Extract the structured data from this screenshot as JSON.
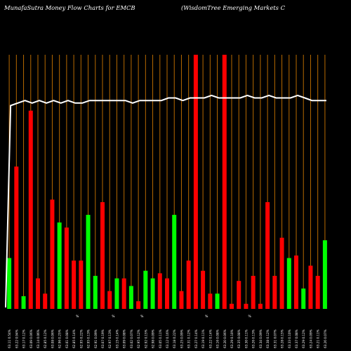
{
  "chart_data": {
    "type": "bar",
    "title": "MunafaSutra  Money Flow  Charts for EMCB",
    "subtitle": "(WisdomTree   Emerging Markets C",
    "colors": {
      "inflow": "#ff0000",
      "outflow": "#00ff00",
      "line": "#ffffff",
      "grid": "#b86a00"
    },
    "categories": [
      "63.11 0.54%",
      "63.22 0.94%",
      "63.17 0.12%",
      "63.09 0.06%",
      "63.14 0.06%",
      "62.85 0.12%",
      "63.08 0.06%",
      "62.96 0.25%",
      "63.01 0.08%",
      "62.85 0.14%",
      "62.95 0.22%",
      "62.95 0.13%",
      "62.91 0.09%",
      "63.07 0.19%",
      "62.97 0.13%",
      "63.15 0.14%",
      "63.09 0.08%",
      "63.02 0.07%",
      "62.95 0.12%",
      "62.92 0.15%",
      "62.98 0.09%",
      "63.05 0.11%",
      "63.12 0.16%",
      "63.18 0.22%",
      "63.25 0.09%",
      "63.31 0.12%",
      "63.27 0.14%",
      "63.19 0.11%",
      "63.22 0.14%",
      "63.16 0.08%",
      "63.20 0.06%",
      "63.29 0.10%",
      "63.35 0.08%",
      "63.30 0.11%",
      "63.26 0.13%",
      "63.34 0.09%",
      "63.38 0.12%",
      "63.31 0.07%",
      "63.28 0.15%",
      "63.33 0.10%",
      "63.37 0.08%",
      "63.29 0.12%",
      "63.24 0.09%",
      "63.21 0.11%",
      "63.26 0.07%"
    ],
    "flow": [
      "out",
      "in",
      "out",
      "in",
      "in",
      "in",
      "in",
      "out",
      "in",
      "in",
      "in",
      "out",
      "out",
      "in",
      "in",
      "out",
      "in",
      "out",
      "in",
      "out",
      "out",
      "in",
      "in",
      "out",
      "in",
      "in",
      "in",
      "in",
      "in",
      "out",
      "in",
      "in",
      "in",
      "in",
      "in",
      "in",
      "in",
      "in",
      "in",
      "out",
      "in",
      "out",
      "in",
      "in",
      "out"
    ],
    "values": [
      20,
      56,
      5,
      78,
      12,
      6,
      43,
      34,
      32,
      19,
      19,
      37,
      13,
      42,
      7,
      12,
      12,
      9,
      3,
      15,
      12,
      14,
      12,
      37,
      7,
      19,
      100,
      15,
      6,
      6,
      100,
      2,
      11,
      2,
      13,
      2,
      42,
      13,
      28,
      20,
      21,
      8,
      17,
      13,
      27
    ],
    "line_values": [
      80,
      81,
      82,
      81,
      82,
      81,
      82,
      81,
      82,
      81,
      81,
      82,
      82,
      82,
      82,
      82,
      82,
      81,
      82,
      82,
      82,
      82,
      83,
      83,
      82,
      83,
      83,
      83,
      84,
      83,
      83,
      83,
      83,
      84,
      83,
      83,
      84,
      83,
      83,
      83,
      84,
      83,
      82,
      82,
      82
    ],
    "x_labels_visible": [
      "%",
      "%",
      "%",
      "%",
      "%"
    ],
    "ylim": [
      0,
      100
    ],
    "grid": true
  }
}
